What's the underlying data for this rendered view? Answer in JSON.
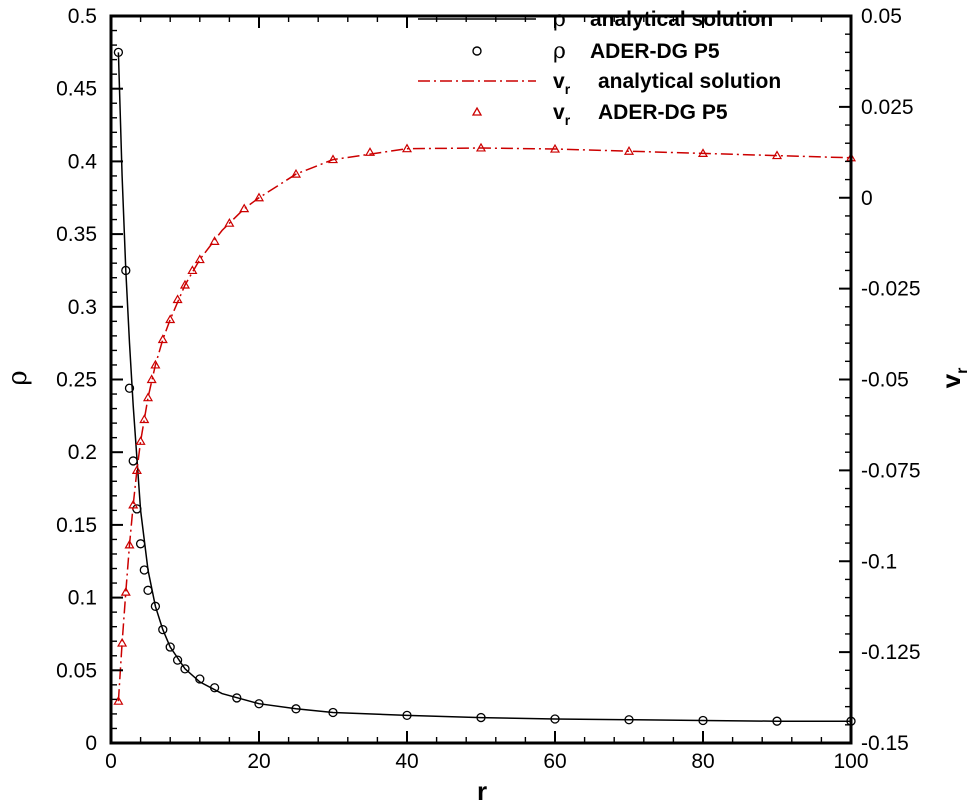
{
  "chart_data": {
    "type": "line",
    "xlabel": "r",
    "ylabel_left": "ρ",
    "ylabel_right": "v_r",
    "xlim": [
      0,
      100
    ],
    "ylim_left": [
      0,
      0.5
    ],
    "ylim_right": [
      -0.15,
      0.05
    ],
    "x_ticks": [
      "0",
      "20",
      "40",
      "60",
      "80",
      "100"
    ],
    "y_left_ticks": [
      "0",
      "0.05",
      "0.1",
      "0.15",
      "0.2",
      "0.25",
      "0.3",
      "0.35",
      "0.4",
      "0.45",
      "0.5"
    ],
    "y_right_ticks": [
      "-0.15",
      "-0.125",
      "-0.1",
      "-0.075",
      "-0.05",
      "-0.025",
      "0",
      "0.025",
      "0.05"
    ],
    "grid": false,
    "legend_position": "top-right",
    "series": [
      {
        "name": "analytical solution",
        "symbol": "ρ",
        "axis": "left",
        "style": "solid-line",
        "color": "#000000",
        "x": [
          1,
          1.5,
          2,
          2.5,
          3,
          3.5,
          4,
          5,
          6,
          7,
          8,
          10,
          12,
          15,
          20,
          25,
          30,
          40,
          50,
          60,
          70,
          80,
          90,
          100
        ],
        "y": [
          0.475,
          0.39,
          0.325,
          0.275,
          0.232,
          0.196,
          0.16,
          0.119,
          0.094,
          0.078,
          0.066,
          0.051,
          0.042,
          0.034,
          0.027,
          0.0235,
          0.021,
          0.019,
          0.0175,
          0.0165,
          0.016,
          0.0155,
          0.015,
          0.015
        ]
      },
      {
        "name": "ADER-DG P5",
        "symbol": "ρ",
        "axis": "left",
        "style": "circle-marker",
        "color": "#000000",
        "x": [
          1,
          2,
          2.5,
          3,
          3.5,
          4,
          4.5,
          5,
          6,
          7,
          8,
          9,
          10,
          12,
          14,
          17,
          20,
          25,
          30,
          40,
          50,
          60,
          70,
          80,
          90,
          100
        ],
        "y": [
          0.475,
          0.325,
          0.244,
          0.194,
          0.161,
          0.137,
          0.119,
          0.105,
          0.094,
          0.078,
          0.066,
          0.057,
          0.051,
          0.044,
          0.038,
          0.031,
          0.027,
          0.0235,
          0.021,
          0.019,
          0.0175,
          0.0165,
          0.016,
          0.0155,
          0.015,
          0.015
        ]
      },
      {
        "name": "analytical solution",
        "symbol": "v_r",
        "axis": "right",
        "style": "dash-dot-line",
        "color": "#cc0000",
        "x": [
          1,
          1.5,
          2,
          2.5,
          3,
          3.5,
          4,
          5,
          6,
          7,
          8,
          10,
          12,
          15,
          18,
          20,
          25,
          30,
          40,
          50,
          60,
          70,
          80,
          90,
          100
        ],
        "y": [
          -0.1385,
          -0.1225,
          -0.1085,
          -0.0955,
          -0.0845,
          -0.075,
          -0.067,
          -0.055,
          -0.046,
          -0.039,
          -0.0335,
          -0.024,
          -0.017,
          -0.009,
          -0.003,
          0,
          0.0065,
          0.0105,
          0.0135,
          0.0137,
          0.0134,
          0.0128,
          0.0122,
          0.0116,
          0.011
        ]
      },
      {
        "name": "ADER-DG P5",
        "symbol": "v_r",
        "axis": "right",
        "style": "triangle-marker",
        "color": "#cc0000",
        "x": [
          1,
          1.5,
          2,
          2.5,
          3,
          3.5,
          4,
          4.5,
          5,
          5.5,
          6,
          7,
          8,
          9,
          10,
          11,
          12,
          14,
          16,
          18,
          20,
          25,
          30,
          35,
          40,
          50,
          60,
          70,
          80,
          90,
          100
        ],
        "y": [
          -0.1385,
          -0.1225,
          -0.1085,
          -0.0955,
          -0.0845,
          -0.075,
          -0.067,
          -0.061,
          -0.055,
          -0.05,
          -0.046,
          -0.039,
          -0.0335,
          -0.028,
          -0.024,
          -0.02,
          -0.017,
          -0.012,
          -0.007,
          -0.003,
          0,
          0.0065,
          0.0105,
          0.0125,
          0.0135,
          0.0137,
          0.0134,
          0.0128,
          0.0122,
          0.0116,
          0.011
        ]
      }
    ]
  }
}
